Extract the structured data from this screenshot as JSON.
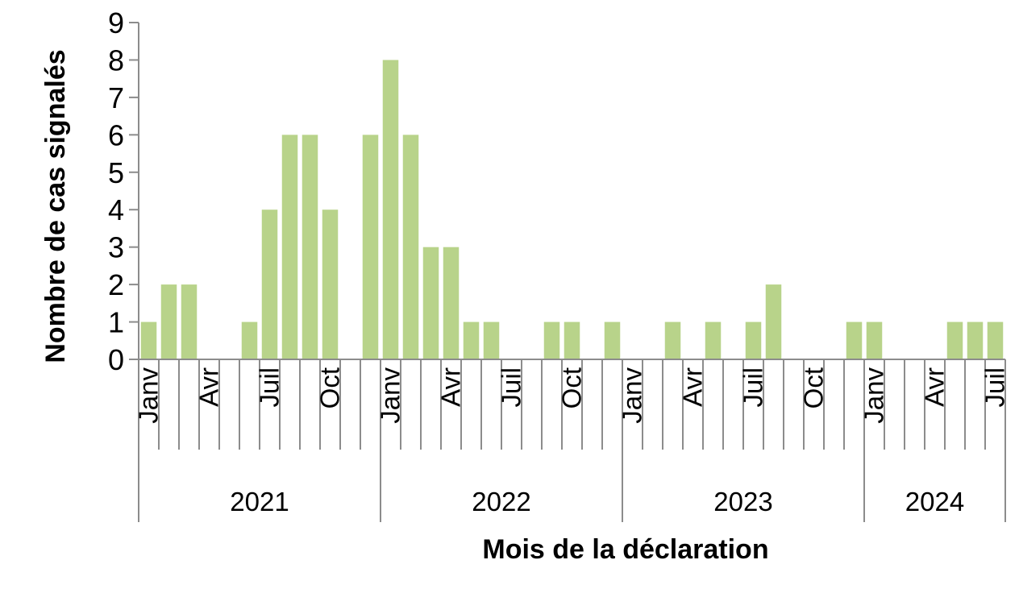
{
  "chart_data": {
    "type": "bar",
    "xlabel": "Mois de la déclaration",
    "ylabel": "Nombre de cas signalés",
    "ylim": [
      0,
      9
    ],
    "yticks": [
      0,
      1,
      2,
      3,
      4,
      5,
      6,
      7,
      8,
      9
    ],
    "grid": false,
    "bar_color": "#b8d38a",
    "month_tick_labels": [
      {
        "index": 0,
        "label": "Janv"
      },
      {
        "index": 3,
        "label": "Avr"
      },
      {
        "index": 6,
        "label": "Juil"
      },
      {
        "index": 9,
        "label": "Oct"
      },
      {
        "index": 12,
        "label": "Janv"
      },
      {
        "index": 15,
        "label": "Avr"
      },
      {
        "index": 18,
        "label": "Juil"
      },
      {
        "index": 21,
        "label": "Oct"
      },
      {
        "index": 24,
        "label": "Janv"
      },
      {
        "index": 27,
        "label": "Avr"
      },
      {
        "index": 30,
        "label": "Juil"
      },
      {
        "index": 33,
        "label": "Oct"
      },
      {
        "index": 36,
        "label": "Janv"
      },
      {
        "index": 39,
        "label": "Avr"
      },
      {
        "index": 42,
        "label": "Juil"
      }
    ],
    "year_groups": [
      {
        "label": "2021",
        "start": 0,
        "count": 12
      },
      {
        "label": "2022",
        "start": 12,
        "count": 12
      },
      {
        "label": "2023",
        "start": 24,
        "count": 12
      },
      {
        "label": "2024",
        "start": 36,
        "count": 7
      }
    ],
    "values": [
      1,
      2,
      2,
      0,
      0,
      1,
      4,
      6,
      6,
      4,
      0,
      6,
      8,
      6,
      3,
      3,
      1,
      1,
      0,
      0,
      1,
      1,
      0,
      1,
      0,
      0,
      1,
      0,
      1,
      0,
      1,
      2,
      0,
      0,
      0,
      1,
      1,
      0,
      0,
      0,
      1,
      1,
      1
    ]
  }
}
